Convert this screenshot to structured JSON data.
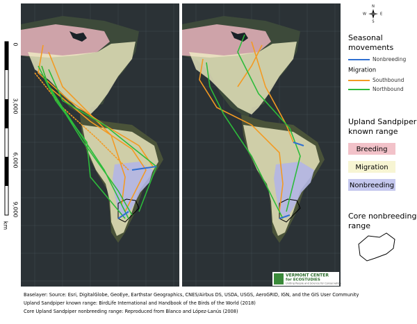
{
  "scale_bar": {
    "labels": [
      "0",
      "3,000",
      "6,000",
      "9,000"
    ],
    "unit": "km"
  },
  "compass": {
    "n": "N",
    "e": "E",
    "s": "S",
    "w": "W"
  },
  "legend": {
    "movements": {
      "title_line1": "Seasonal",
      "title_line2": "movements",
      "nonbreeding": "Nonbreeding",
      "migration": "Migration",
      "southbound": "Southbound",
      "northbound": "Northbound"
    },
    "range": {
      "title_line1": "Upland Sandpiper",
      "title_line2": "known range",
      "breeding": "Breeding",
      "migration": "Migration",
      "nonbreeding": "Nonbreeding"
    },
    "core": {
      "title_line1": "Core nonbreeding",
      "title_line2": "range"
    }
  },
  "logo": {
    "line1": "VERMONT CENTER",
    "line2": "for ECOSTUDIES",
    "tagline": "Uniting People and Science for Conservation"
  },
  "footer": [
    "Baselayer:  Source: Esri, DigitalGlobe, GeoEye, Earthstar Geographics, CNES/Airbus DS, USDA, USGS, AeroGRID, IGN, and the GIS User Community",
    "Upland Sandpiper known range: BirdLife International and Handbook of the Birds of the World (2018)",
    "Core Upland Sandpiper nonbreeding range: Reproduced from Blanco and López-Lanús (2008)"
  ]
}
